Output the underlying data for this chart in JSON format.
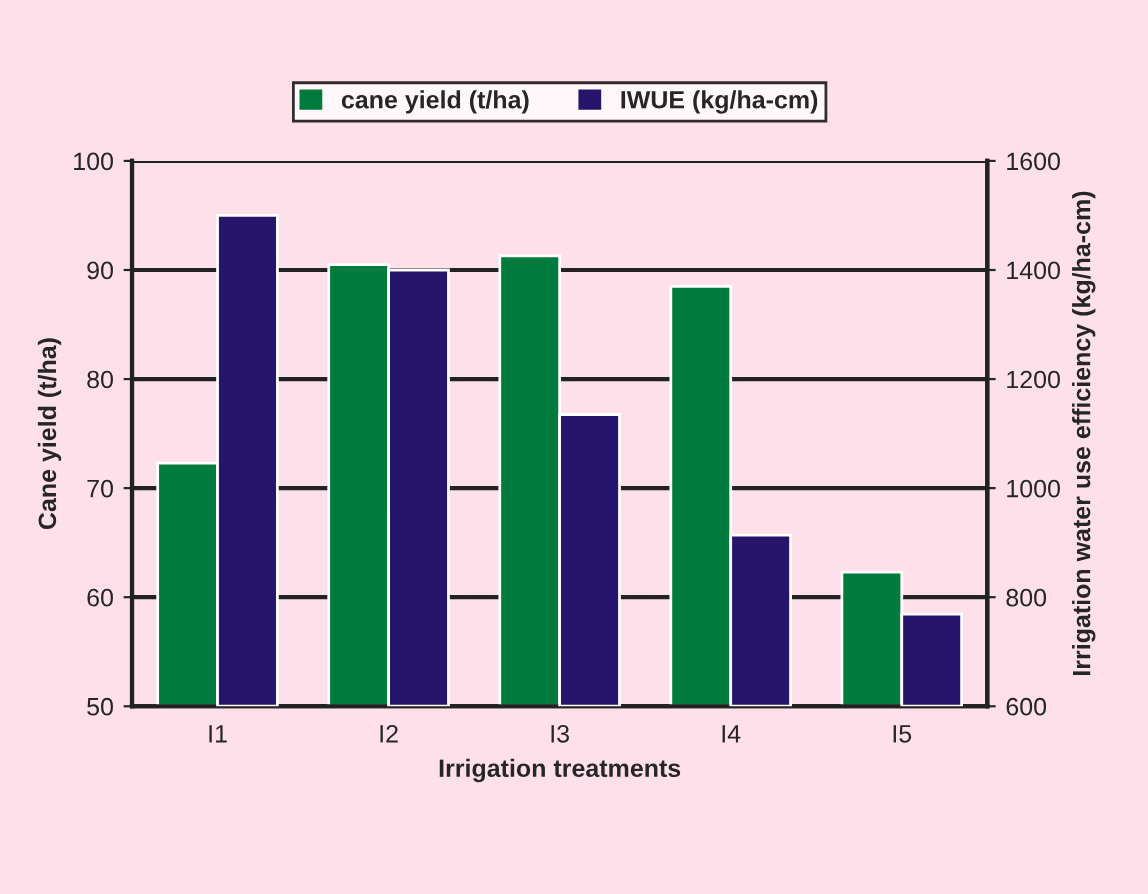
{
  "chart_data": {
    "type": "bar",
    "xlabel": "Irrigation treatments",
    "ylabel": "Cane yield (t/ha)",
    "y2label": "Irrigation water use efficiency (kg/ha-cm)",
    "categories": [
      "I1",
      "I2",
      "I3",
      "I4",
      "I5"
    ],
    "series": [
      {
        "name": "cane yield (t/ha)",
        "color": "#007a3d",
        "values": [
          72.3,
          90.5,
          91.3,
          88.5,
          62.3
        ]
      },
      {
        "name": "IWUE (kg/ha-cm)",
        "color": "#26166b",
        "axis": "y2",
        "values": [
          1500,
          1400,
          1135,
          914,
          769
        ]
      }
    ],
    "ylim": [
      50,
      100
    ],
    "yticks": [
      50,
      60,
      70,
      80,
      90,
      100
    ],
    "y2lim": [
      600,
      1600
    ],
    "y2ticks": [
      600,
      800,
      1000,
      1200,
      1400,
      1600
    ],
    "grid": "y",
    "legend": "top"
  }
}
